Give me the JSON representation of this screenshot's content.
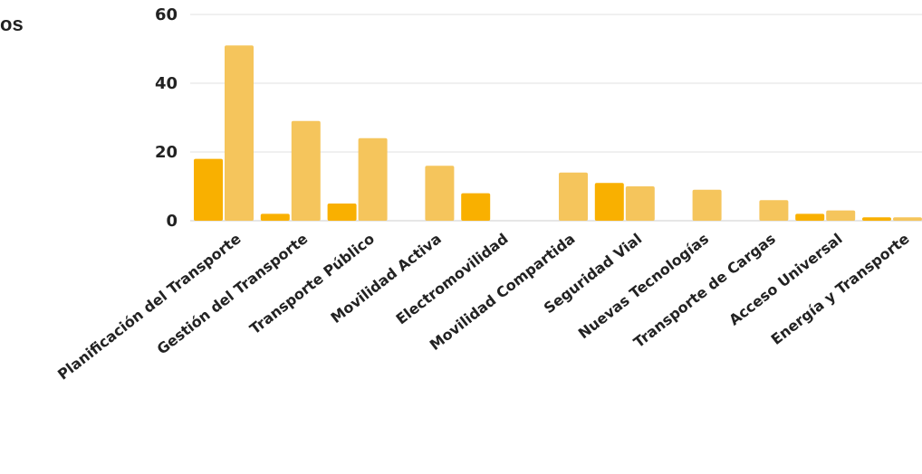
{
  "legend_fragment": "os",
  "chart_data": {
    "type": "bar",
    "title": "",
    "xlabel": "",
    "ylabel": "",
    "ylim": [
      0,
      60
    ],
    "yticks": [
      0,
      20,
      40,
      60
    ],
    "grid": true,
    "categories": [
      "Planificación del Transporte",
      "Gestión del Transporte",
      "Transporte Público",
      "Movilidad Activa",
      "Electromovilidad",
      "Movilidad Compartida",
      "Seguridad Vial",
      "Nuevas Tecnologías",
      "Transporte de Cargas",
      "Acceso Universal",
      "Energía y Transporte"
    ],
    "series": [
      {
        "color": "#F9B000",
        "values": [
          18,
          2,
          5,
          0,
          8,
          0,
          11,
          0,
          0,
          2,
          1
        ]
      },
      {
        "color": "#F5C55C",
        "values": [
          51,
          29,
          24,
          16,
          0,
          14,
          10,
          9,
          6,
          3,
          1
        ]
      }
    ]
  }
}
